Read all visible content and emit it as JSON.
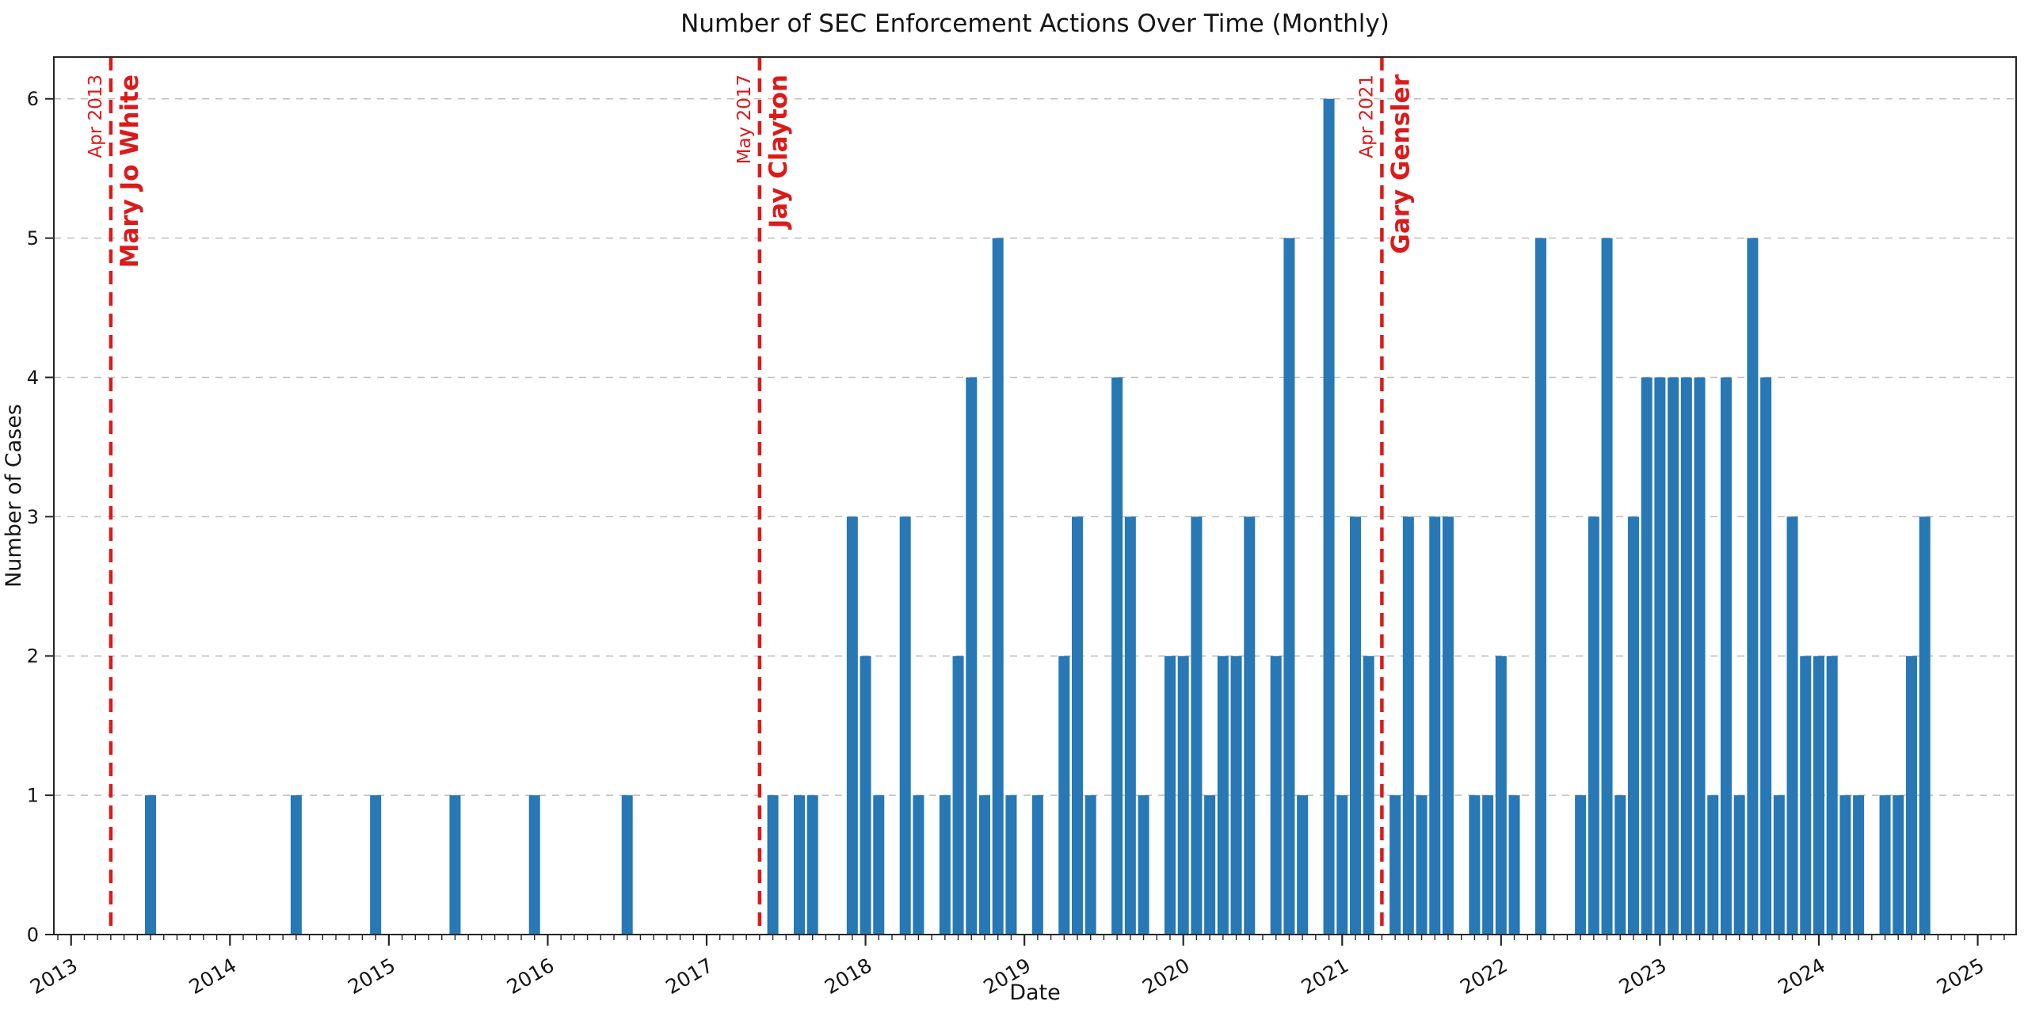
{
  "chart_data": {
    "type": "bar",
    "title": "Number of SEC Enforcement Actions Over Time (Monthly)",
    "xlabel": "Date",
    "ylabel": "Number of Cases",
    "ylim": [
      0,
      6.3
    ],
    "xlim_months_from_2013_01": [
      -1.3,
      146.9
    ],
    "grid": "horizontal-dashed",
    "legend": "none",
    "y_ticks": [
      "0",
      "1",
      "2",
      "3",
      "4",
      "5",
      "6"
    ],
    "x_major_ticks": [
      "2013",
      "2014",
      "2015",
      "2016",
      "2017",
      "2018",
      "2019",
      "2020",
      "2021",
      "2022",
      "2023",
      "2024",
      "2025"
    ],
    "x_minor_tick_interval": "month",
    "missing_months_are_zero": true,
    "series": [
      {
        "month": "2013-07",
        "value": 1
      },
      {
        "month": "2014-06",
        "value": 1
      },
      {
        "month": "2014-12",
        "value": 1
      },
      {
        "month": "2015-06",
        "value": 1
      },
      {
        "month": "2015-12",
        "value": 1
      },
      {
        "month": "2016-07",
        "value": 1
      },
      {
        "month": "2017-06",
        "value": 1
      },
      {
        "month": "2017-08",
        "value": 1
      },
      {
        "month": "2017-09",
        "value": 1
      },
      {
        "month": "2017-12",
        "value": 3
      },
      {
        "month": "2018-01",
        "value": 2
      },
      {
        "month": "2018-02",
        "value": 1
      },
      {
        "month": "2018-04",
        "value": 3
      },
      {
        "month": "2018-05",
        "value": 1
      },
      {
        "month": "2018-07",
        "value": 1
      },
      {
        "month": "2018-08",
        "value": 2
      },
      {
        "month": "2018-09",
        "value": 4
      },
      {
        "month": "2018-10",
        "value": 1
      },
      {
        "month": "2018-11",
        "value": 5
      },
      {
        "month": "2018-12",
        "value": 1
      },
      {
        "month": "2019-02",
        "value": 1
      },
      {
        "month": "2019-04",
        "value": 2
      },
      {
        "month": "2019-05",
        "value": 3
      },
      {
        "month": "2019-06",
        "value": 1
      },
      {
        "month": "2019-08",
        "value": 4
      },
      {
        "month": "2019-09",
        "value": 3
      },
      {
        "month": "2019-10",
        "value": 1
      },
      {
        "month": "2019-12",
        "value": 2
      },
      {
        "month": "2020-01",
        "value": 2
      },
      {
        "month": "2020-02",
        "value": 3
      },
      {
        "month": "2020-03",
        "value": 1
      },
      {
        "month": "2020-04",
        "value": 2
      },
      {
        "month": "2020-05",
        "value": 2
      },
      {
        "month": "2020-06",
        "value": 3
      },
      {
        "month": "2020-08",
        "value": 2
      },
      {
        "month": "2020-09",
        "value": 5
      },
      {
        "month": "2020-10",
        "value": 1
      },
      {
        "month": "2020-12",
        "value": 6
      },
      {
        "month": "2021-01",
        "value": 1
      },
      {
        "month": "2021-02",
        "value": 3
      },
      {
        "month": "2021-03",
        "value": 2
      },
      {
        "month": "2021-05",
        "value": 1
      },
      {
        "month": "2021-06",
        "value": 3
      },
      {
        "month": "2021-07",
        "value": 1
      },
      {
        "month": "2021-08",
        "value": 3
      },
      {
        "month": "2021-09",
        "value": 3
      },
      {
        "month": "2021-11",
        "value": 1
      },
      {
        "month": "2021-12",
        "value": 1
      },
      {
        "month": "2022-01",
        "value": 2
      },
      {
        "month": "2022-02",
        "value": 1
      },
      {
        "month": "2022-04",
        "value": 5
      },
      {
        "month": "2022-07",
        "value": 1
      },
      {
        "month": "2022-08",
        "value": 3
      },
      {
        "month": "2022-09",
        "value": 5
      },
      {
        "month": "2022-10",
        "value": 1
      },
      {
        "month": "2022-11",
        "value": 3
      },
      {
        "month": "2022-12",
        "value": 4
      },
      {
        "month": "2023-01",
        "value": 4
      },
      {
        "month": "2023-02",
        "value": 4
      },
      {
        "month": "2023-03",
        "value": 4
      },
      {
        "month": "2023-04",
        "value": 4
      },
      {
        "month": "2023-05",
        "value": 1
      },
      {
        "month": "2023-06",
        "value": 4
      },
      {
        "month": "2023-07",
        "value": 1
      },
      {
        "month": "2023-08",
        "value": 5
      },
      {
        "month": "2023-09",
        "value": 4
      },
      {
        "month": "2023-10",
        "value": 1
      },
      {
        "month": "2023-11",
        "value": 3
      },
      {
        "month": "2023-12",
        "value": 2
      },
      {
        "month": "2024-01",
        "value": 2
      },
      {
        "month": "2024-02",
        "value": 2
      },
      {
        "month": "2024-03",
        "value": 1
      },
      {
        "month": "2024-04",
        "value": 1
      },
      {
        "month": "2024-06",
        "value": 1
      },
      {
        "month": "2024-07",
        "value": 1
      },
      {
        "month": "2024-08",
        "value": 2
      },
      {
        "month": "2024-09",
        "value": 3
      }
    ],
    "annotations": [
      {
        "month": "2013-04",
        "date_label": "Apr 2013",
        "name": "Mary Jo White"
      },
      {
        "month": "2017-05",
        "date_label": "May 2017",
        "name": "Jay Clayton"
      },
      {
        "month": "2021-04",
        "date_label": "Apr 2021",
        "name": "Gary Gensler"
      }
    ],
    "colors": {
      "bar": "#2778b5",
      "annotation": "#dc1a1a",
      "grid": "#bfbfbf",
      "spine": "#262626",
      "text": "#151515",
      "background": "#ffffff"
    }
  }
}
